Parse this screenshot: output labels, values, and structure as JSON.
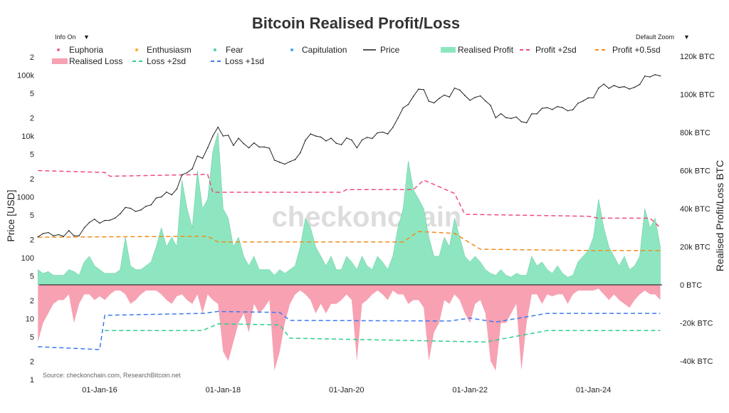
{
  "title": "Bitcoin Realised Profit/Loss",
  "controls": {
    "info_label": "Info On",
    "info_arrow": "▼",
    "zoom_label": "Default Zoom",
    "zoom_arrow": "▼"
  },
  "watermark": "checkonchain",
  "source": "Source: checkonchain.com, ResearchBitcoin.net",
  "colors": {
    "euphoria": "#f06292",
    "enthusiasm": "#ffa726",
    "fear": "#4dd0a1",
    "capitulation": "#42a5f5",
    "price": "#222222",
    "profit": "#8ee6c0",
    "loss": "#f7a1b3",
    "profit_2sd": "#ef4c7c",
    "profit_05sd": "#f28c1a",
    "loss_2sd": "#2ecf8a",
    "loss_1sd": "#3b7bf0"
  },
  "legend": {
    "euphoria": "Euphoria",
    "enthusiasm": "Enthusiasm",
    "fear": "Fear",
    "capitulation": "Capitulation",
    "price": "Price",
    "profit": "Realised Profit",
    "profit_2sd": "Profit +2sd",
    "profit_05sd": "Profit +0.5sd",
    "loss": "Realised Loss",
    "loss_2sd": "Loss +2sd",
    "loss_1sd": "Loss +1sd"
  },
  "chart_data": {
    "type": "line+area",
    "title": "Bitcoin Realised Profit/Loss",
    "ylabel_left": "Price [USD]",
    "ylabel_right": "Realised Profit/Loss BTC",
    "yscale_left": "log",
    "ylim_left": [
      1,
      200000
    ],
    "ylim_right_kbtc": [
      -50,
      120
    ],
    "x_start": "2015-01",
    "x_end": "2025-02",
    "x_ticks": [
      "01-Jan-16",
      "01-Jan-18",
      "01-Jan-20",
      "01-Jan-22",
      "01-Jan-24"
    ],
    "y_left_ticks": [
      "1",
      "2",
      "5",
      "10",
      "2",
      "5",
      "100",
      "2",
      "5",
      "1000",
      "2",
      "5",
      "10k",
      "2",
      "5",
      "100k",
      "2"
    ],
    "y_right_ticks": [
      "-40k BTC",
      "-20k BTC",
      "0 BTC",
      "20k BTC",
      "40k BTC",
      "60k BTC",
      "80k BTC",
      "100k BTC",
      "120k BTC"
    ],
    "grid": false,
    "legend_position": "top",
    "price_usd_monthly": [
      220,
      250,
      260,
      230,
      240,
      225,
      280,
      230,
      230,
      310,
      380,
      430,
      370,
      410,
      415,
      450,
      530,
      670,
      650,
      575,
      610,
      700,
      740,
      960,
      1000,
      1200,
      1080,
      1350,
      2300,
      2500,
      2900,
      4700,
      4300,
      6400,
      10000,
      14000,
      10000,
      10300,
      7000,
      9200,
      7500,
      6400,
      7700,
      6600,
      6600,
      6300,
      4000,
      3700,
      3450,
      3800,
      4100,
      5300,
      8500,
      10800,
      10000,
      9600,
      8300,
      9200,
      7600,
      7200,
      9300,
      8600,
      6400,
      8600,
      9500,
      9100,
      11300,
      11600,
      10800,
      13800,
      19700,
      29000,
      33000,
      45000,
      58800,
      57700,
      37300,
      35000,
      41500,
      47000,
      43800,
      61300,
      57000,
      46300,
      38500,
      43200,
      45500,
      37700,
      31800,
      19900,
      23300,
      20000,
      19400,
      20500,
      17200,
      16500,
      23100,
      23100,
      28500,
      29200,
      27200,
      30500,
      29200,
      26000,
      27000,
      34500,
      37700,
      42300,
      42500,
      61200,
      71300,
      60600,
      67500,
      62700,
      64600,
      59000,
      63300,
      70200,
      96400,
      93400,
      102000,
      97000
    ],
    "realised_profit_kbtc_monthly": [
      8,
      6,
      7,
      5,
      5,
      5,
      8,
      7,
      5,
      12,
      15,
      10,
      8,
      6,
      6,
      6,
      8,
      25,
      10,
      8,
      8,
      10,
      12,
      20,
      30,
      20,
      25,
      20,
      55,
      40,
      30,
      60,
      40,
      45,
      70,
      80,
      40,
      35,
      20,
      25,
      15,
      10,
      15,
      8,
      8,
      8,
      5,
      8,
      6,
      8,
      10,
      20,
      35,
      30,
      20,
      15,
      10,
      15,
      8,
      8,
      15,
      12,
      8,
      15,
      10,
      8,
      15,
      12,
      8,
      15,
      30,
      40,
      65,
      50,
      45,
      40,
      25,
      15,
      15,
      25,
      20,
      35,
      25,
      15,
      12,
      15,
      12,
      8,
      6,
      5,
      8,
      5,
      4,
      6,
      5,
      5,
      15,
      10,
      12,
      8,
      6,
      10,
      6,
      4,
      5,
      12,
      15,
      18,
      25,
      45,
      30,
      20,
      15,
      10,
      15,
      8,
      10,
      15,
      40,
      30,
      35,
      20
    ],
    "realised_loss_kbtc_monthly": [
      -30,
      -20,
      -15,
      -10,
      -8,
      -8,
      -5,
      -20,
      -10,
      -5,
      -5,
      -8,
      -6,
      -8,
      -5,
      -3,
      -3,
      -5,
      -10,
      -8,
      -5,
      -3,
      -3,
      -3,
      -5,
      -8,
      -10,
      -6,
      -5,
      -8,
      -10,
      -5,
      -15,
      -5,
      -8,
      -10,
      -35,
      -40,
      -30,
      -20,
      -15,
      -25,
      -10,
      -15,
      -12,
      -8,
      -45,
      -35,
      -20,
      -10,
      -5,
      -3,
      -5,
      -8,
      -15,
      -10,
      -15,
      -10,
      -10,
      -8,
      -5,
      -8,
      -40,
      -10,
      -8,
      -5,
      -3,
      -5,
      -8,
      -3,
      -5,
      -5,
      -10,
      -8,
      -8,
      -12,
      -40,
      -25,
      -20,
      -8,
      -10,
      -5,
      -8,
      -15,
      -20,
      -10,
      -8,
      -15,
      -40,
      -45,
      -20,
      -20,
      -15,
      -10,
      -45,
      -20,
      -5,
      -5,
      -10,
      -5,
      -6,
      -5,
      -5,
      -10,
      -5,
      -3,
      -3,
      -3,
      -3,
      -2,
      -5,
      -8,
      -5,
      -8,
      -10,
      -12,
      -8,
      -5,
      -3,
      -5,
      -5,
      -8
    ],
    "profit_2sd_kbtc": [
      [
        "2015-01",
        60
      ],
      [
        "2016-02",
        59
      ],
      [
        "2016-03",
        57
      ],
      [
        "2017-10",
        58
      ],
      [
        "2017-11",
        48.6
      ],
      [
        "2019-12",
        48.6
      ],
      [
        "2020-01",
        50
      ],
      [
        "2021-02",
        50
      ],
      [
        "2021-04",
        55
      ],
      [
        "2021-10",
        48
      ],
      [
        "2021-12",
        37
      ],
      [
        "2023-12",
        36
      ],
      [
        "2024-02",
        35
      ],
      [
        "2024-12",
        35
      ],
      [
        "2025-02",
        30
      ]
    ],
    "profit_05sd_kbtc": [
      [
        "2015-01",
        25
      ],
      [
        "2017-10",
        25.5
      ],
      [
        "2017-12",
        22.5
      ],
      [
        "2020-12",
        22.5
      ],
      [
        "2021-03",
        28
      ],
      [
        "2021-10",
        27
      ],
      [
        "2022-03",
        18.7
      ],
      [
        "2024-01",
        18
      ],
      [
        "2025-02",
        18
      ]
    ],
    "loss_2sd_kbtc": [
      [
        "2016-02",
        -24
      ],
      [
        "2017-09",
        -24
      ],
      [
        "2017-12",
        -20.5
      ],
      [
        "2018-12",
        -21
      ],
      [
        "2019-02",
        -28
      ],
      [
        "2022-04",
        -30
      ],
      [
        "2023-04",
        -24
      ],
      [
        "2025-02",
        -24
      ]
    ],
    "loss_1sd_kbtc": [
      [
        "2015-01",
        -32.5
      ],
      [
        "2016-01",
        -34
      ],
      [
        "2016-02",
        -16
      ],
      [
        "2017-09",
        -15
      ],
      [
        "2017-12",
        -14
      ],
      [
        "2018-12",
        -14.5
      ],
      [
        "2019-02",
        -18.7
      ],
      [
        "2021-09",
        -19
      ],
      [
        "2022-01",
        -17.5
      ],
      [
        "2022-06",
        -19.5
      ],
      [
        "2023-04",
        -15
      ],
      [
        "2025-02",
        -15
      ]
    ]
  }
}
